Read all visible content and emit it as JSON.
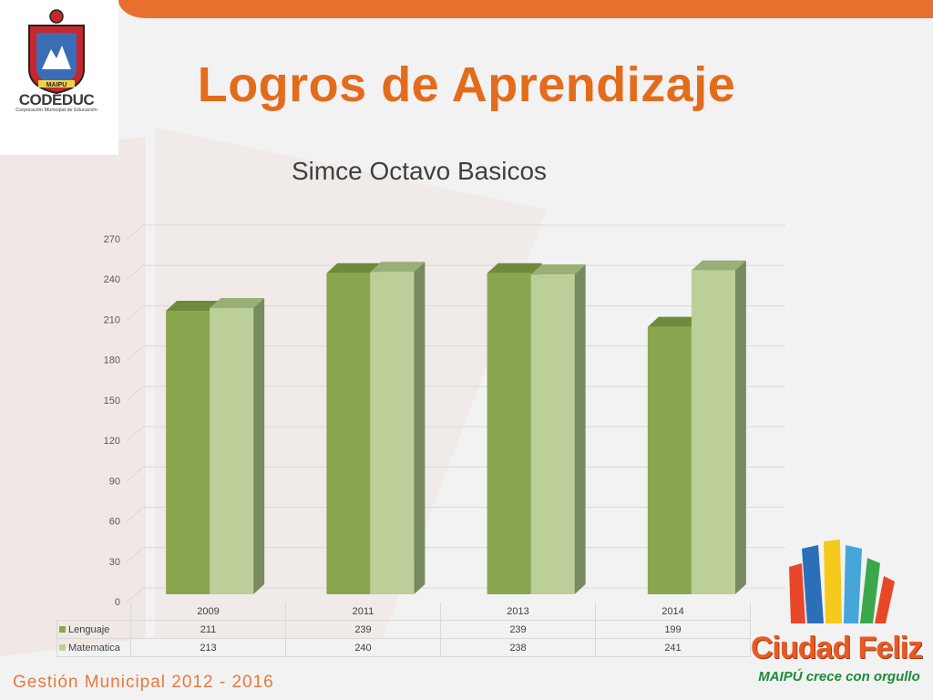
{
  "slide": {
    "title": "Logros de Aprendizaje",
    "footer": "Gestión Municipal 2012 - 2016"
  },
  "logo_left": {
    "name": "CODEDUC",
    "subtitle": "Corporación Municipal de Educación",
    "crest_text": "MAIPU"
  },
  "logo_right": {
    "name": "Ciudad Feliz",
    "slogan": "MAIPÚ crece con orgullo"
  },
  "colors": {
    "accent": "#e36c1c",
    "lenguaje": "#8aa64f",
    "matematica": "#bccf98"
  },
  "chart_data": {
    "type": "bar",
    "title": "Simce Octavo Basicos",
    "categories": [
      "2009",
      "2011",
      "2013",
      "2014"
    ],
    "series": [
      {
        "name": "Lenguaje",
        "values": [
          211,
          239,
          239,
          199
        ]
      },
      {
        "name": "Matematica",
        "values": [
          213,
          240,
          238,
          241
        ]
      }
    ],
    "ylim": [
      0,
      270
    ],
    "yticks": [
      "0",
      "30",
      "60",
      "90",
      "120",
      "150",
      "180",
      "210",
      "240",
      "270"
    ],
    "table_values": {
      "Lenguaje": [
        "211",
        "239",
        "239",
        "199"
      ],
      "Matematica": [
        "213",
        "240",
        "238",
        "241"
      ]
    },
    "grid": true,
    "style": "3d-clustered-column",
    "legend": "data-table"
  }
}
